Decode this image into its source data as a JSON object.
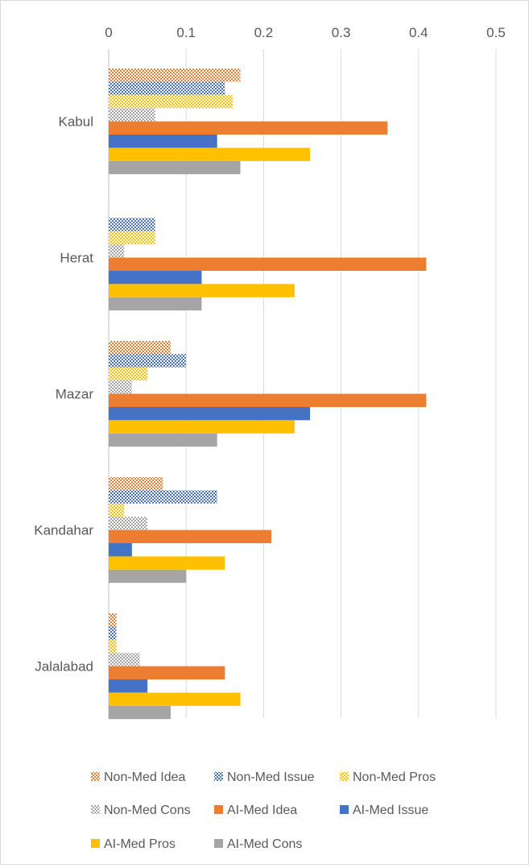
{
  "chart_data": {
    "type": "bar",
    "orientation": "horizontal",
    "x_axis_position": "top",
    "xlim": [
      0,
      0.5
    ],
    "x_ticks": [
      0,
      0.1,
      0.2,
      0.3,
      0.4,
      0.5
    ],
    "x_tick_labels": [
      "0",
      "0.1",
      "0.2",
      "0.3",
      "0.4",
      "0.5"
    ],
    "grid": "vertical",
    "legend_position": "bottom",
    "categories": [
      "Kabul",
      "Herat",
      "Mazar",
      "Kandahar",
      "Jalalabad"
    ],
    "series": [
      {
        "name": "Non-Med Idea",
        "values": [
          0.17,
          0,
          0.08,
          0.07,
          0.01
        ],
        "color": "#ED7D31",
        "pattern": true
      },
      {
        "name": "Non-Med Issue",
        "values": [
          0.15,
          0.06,
          0.1,
          0.14,
          0.01
        ],
        "color": "#4472C4",
        "pattern": true
      },
      {
        "name": "Non-Med Pros",
        "values": [
          0.16,
          0.06,
          0.05,
          0.02,
          0.01
        ],
        "color": "#FFC000",
        "pattern": true
      },
      {
        "name": "Non-Med Cons",
        "values": [
          0.06,
          0.02,
          0.03,
          0.05,
          0.04
        ],
        "color": "#A5A5A5",
        "pattern": true
      },
      {
        "name": "AI-Med Idea",
        "values": [
          0.36,
          0.41,
          0.41,
          0.21,
          0.15
        ],
        "color": "#ED7D31",
        "pattern": false
      },
      {
        "name": "AI-Med Issue",
        "values": [
          0.14,
          0.12,
          0.26,
          0.03,
          0.05
        ],
        "color": "#4472C4",
        "pattern": false
      },
      {
        "name": "AI-Med Pros",
        "values": [
          0.26,
          0.24,
          0.24,
          0.15,
          0.17
        ],
        "color": "#FFC000",
        "pattern": false
      },
      {
        "name": "AI-Med Cons",
        "values": [
          0.17,
          0.12,
          0.14,
          0.1,
          0.08
        ],
        "color": "#A5A5A5",
        "pattern": false
      }
    ]
  }
}
